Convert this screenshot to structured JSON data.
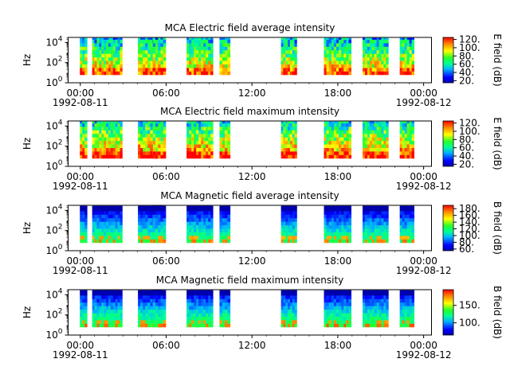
{
  "chart_data": [
    {
      "type": "heatmap",
      "title": "MCA  Electric field average intensity",
      "ylabel": "Hz",
      "y_scale": "log",
      "ylim": [
        1,
        31623
      ],
      "y_ticks": [
        {
          "base": "10",
          "exp": "0"
        },
        {
          "base": "10",
          "exp": "2"
        },
        {
          "base": "10",
          "exp": "4"
        }
      ],
      "x_ticks": [
        "00:00",
        "06:00",
        "12:00",
        "18:00",
        "00:00"
      ],
      "x_dates": [
        "1992-08-11",
        "1992-08-12"
      ],
      "colorbar": {
        "label": "E field (dB)",
        "range": [
          15,
          125
        ],
        "ticks": [
          "20.",
          "40.",
          "60.",
          "80.",
          "100.",
          "120."
        ]
      },
      "data_segments_hours": [
        [
          -0.03,
          0.47
        ],
        [
          0.83,
          2.93
        ],
        [
          4.03,
          5.73
        ],
        [
          5.07,
          5.97
        ],
        [
          7.43,
          9.27
        ],
        [
          9.73,
          10.47
        ],
        [
          14.03,
          15.13
        ],
        [
          17.03,
          18.93
        ],
        [
          19.73,
          21.53
        ],
        [
          22.33,
          23.33
        ]
      ]
    },
    {
      "type": "heatmap",
      "title": "MCA  Electric field maximum intensity",
      "ylabel": "Hz",
      "y_scale": "log",
      "ylim": [
        1,
        31623
      ],
      "y_ticks": [
        {
          "base": "10",
          "exp": "0"
        },
        {
          "base": "10",
          "exp": "2"
        },
        {
          "base": "10",
          "exp": "4"
        }
      ],
      "x_ticks": [
        "00:00",
        "06:00",
        "12:00",
        "18:00",
        "00:00"
      ],
      "x_dates": [
        "1992-08-11",
        "1992-08-12"
      ],
      "colorbar": {
        "label": "E field (dB)",
        "range": [
          15,
          125
        ],
        "ticks": [
          "20.",
          "40.",
          "60.",
          "80.",
          "100.",
          "120."
        ]
      },
      "data_segments_hours": [
        [
          -0.03,
          0.47
        ],
        [
          0.83,
          2.93
        ],
        [
          4.03,
          5.73
        ],
        [
          5.07,
          5.97
        ],
        [
          7.43,
          9.27
        ],
        [
          9.73,
          10.47
        ],
        [
          14.03,
          15.13
        ],
        [
          17.03,
          18.93
        ],
        [
          19.73,
          21.53
        ],
        [
          22.33,
          23.33
        ]
      ]
    },
    {
      "type": "heatmap",
      "title": "MCA  Magnetic field average intensity",
      "ylabel": "Hz",
      "y_scale": "log",
      "ylim": [
        1,
        31623
      ],
      "y_ticks": [
        {
          "base": "10",
          "exp": "0"
        },
        {
          "base": "10",
          "exp": "2"
        },
        {
          "base": "10",
          "exp": "4"
        }
      ],
      "x_ticks": [
        "00:00",
        "06:00",
        "12:00",
        "18:00",
        "00:00"
      ],
      "x_dates": [
        "1992-08-11",
        "1992-08-12"
      ],
      "colorbar": {
        "label": "B field (dB)",
        "range": [
          55,
          190
        ],
        "ticks": [
          "60.",
          "80.",
          "100.",
          "120.",
          "140.",
          "160.",
          "180."
        ]
      },
      "data_segments_hours": [
        [
          -0.03,
          0.47
        ],
        [
          0.83,
          2.93
        ],
        [
          4.03,
          5.73
        ],
        [
          5.07,
          5.97
        ],
        [
          7.43,
          9.27
        ],
        [
          9.73,
          10.47
        ],
        [
          14.03,
          15.13
        ],
        [
          17.03,
          18.93
        ],
        [
          19.73,
          21.53
        ],
        [
          22.33,
          23.33
        ]
      ]
    },
    {
      "type": "heatmap",
      "title": "MCA  Magnetic field maximum intensity",
      "ylabel": "Hz",
      "y_scale": "log",
      "ylim": [
        1,
        31623
      ],
      "y_ticks": [
        {
          "base": "10",
          "exp": "0"
        },
        {
          "base": "10",
          "exp": "2"
        },
        {
          "base": "10",
          "exp": "4"
        }
      ],
      "x_ticks": [
        "00:00",
        "06:00",
        "12:00",
        "18:00",
        "00:00"
      ],
      "x_dates": [
        "1992-08-11",
        "1992-08-12"
      ],
      "colorbar": {
        "label": "B field (dB)",
        "range": [
          65,
          195
        ],
        "ticks": [
          "100.",
          "150."
        ]
      },
      "data_segments_hours": [
        [
          -0.03,
          0.47
        ],
        [
          0.83,
          2.93
        ],
        [
          4.03,
          5.73
        ],
        [
          5.07,
          5.97
        ],
        [
          7.43,
          9.27
        ],
        [
          9.73,
          10.47
        ],
        [
          14.03,
          15.13
        ],
        [
          17.03,
          18.93
        ],
        [
          19.73,
          21.53
        ],
        [
          22.33,
          23.33
        ]
      ]
    }
  ]
}
